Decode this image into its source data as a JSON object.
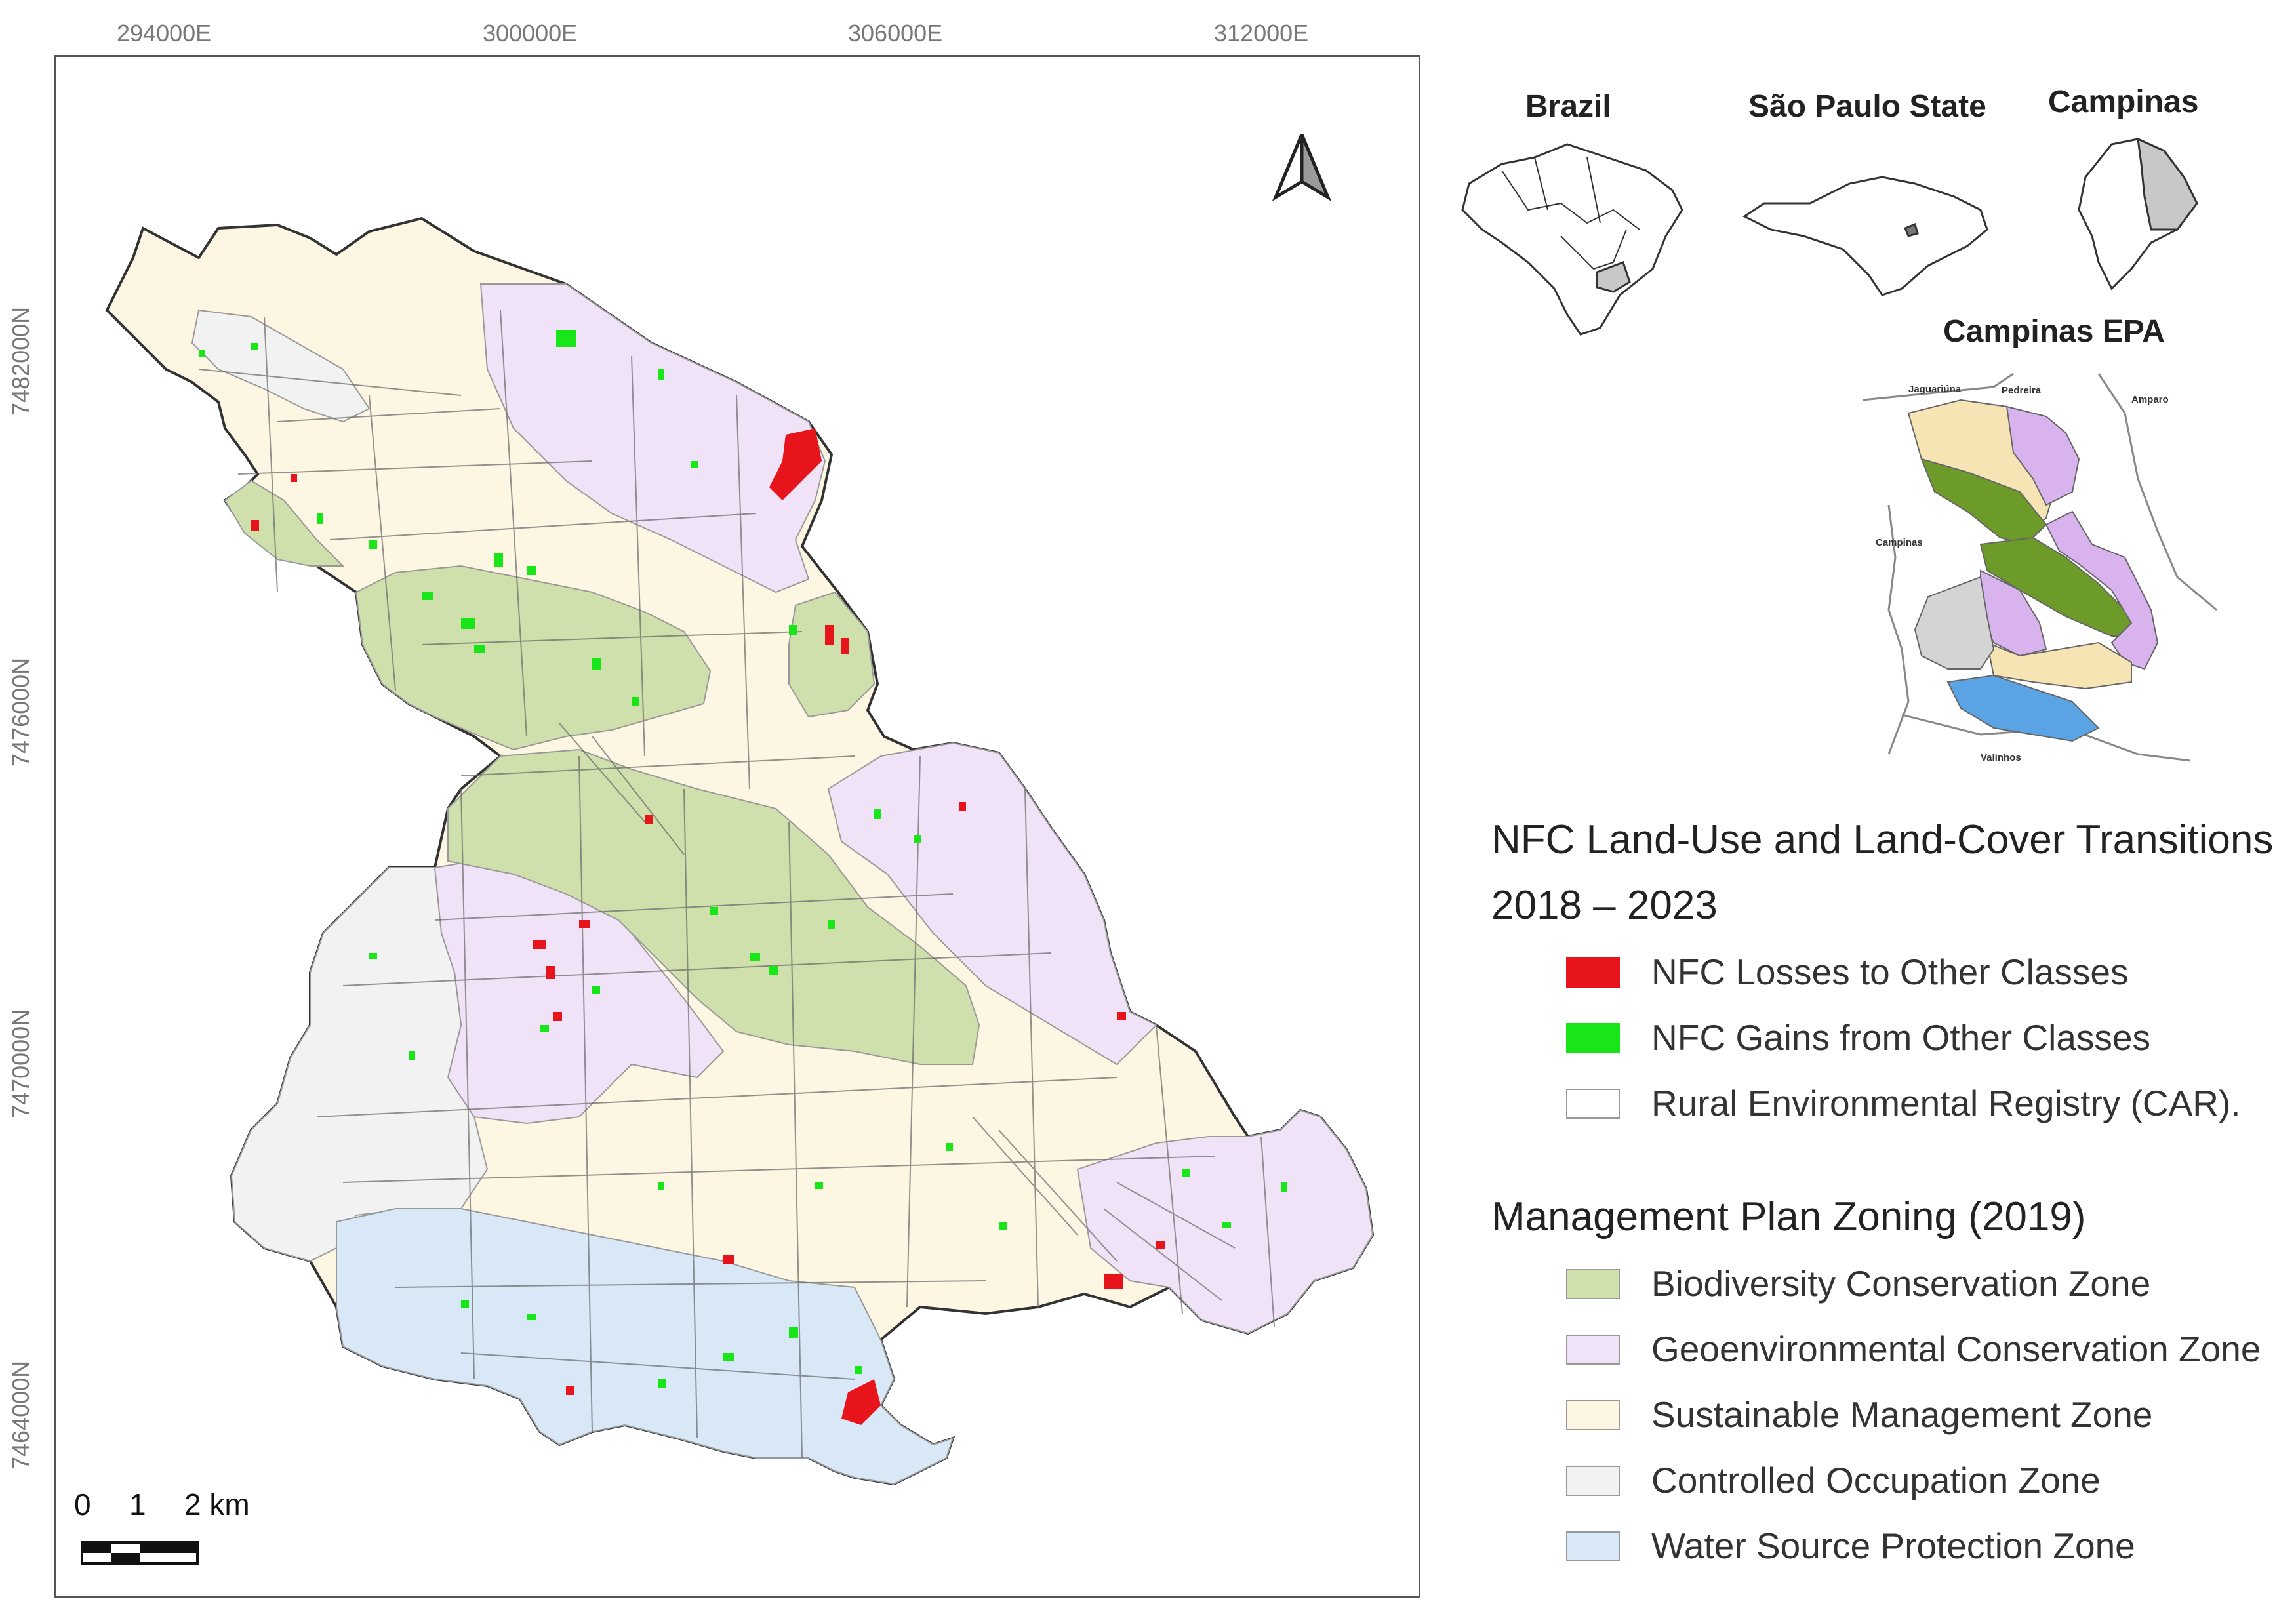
{
  "grid": {
    "eastings": [
      "294000E",
      "300000E",
      "306000E",
      "312000E"
    ],
    "northings": [
      "7482000N",
      "7476000N",
      "7470000N",
      "7464000N"
    ]
  },
  "scalebar": {
    "labels": [
      "0",
      "1",
      "2 km"
    ]
  },
  "insets": {
    "brazil": "Brazil",
    "sao_paulo": "São Paulo State",
    "campinas": "Campinas",
    "epa_title": "Campinas EPA",
    "epa_labels": [
      "Jaguariúna",
      "Pedreira",
      "Amparo",
      "Campinas",
      "Valinhos"
    ]
  },
  "legend": {
    "transitions_title_line1": "NFC Land-Use and Land-Cover Transitions",
    "transitions_title_line2": "2018 – 2023",
    "losses": "NFC Losses to Other Classes",
    "gains": "NFC Gains from Other Classes",
    "car": "Rural Environmental Registry (CAR).",
    "zoning_title": "Management Plan Zoning (2019)",
    "zones": [
      "Biodiversity Conservation Zone",
      "Geoenvironmental Conservation Zone",
      "Sustainable Management Zone",
      "Controlled Occupation Zone",
      "Water Source Protection Zone"
    ]
  },
  "colors": {
    "losses": "#e8141b",
    "gains": "#19e619",
    "car": "#ffffff",
    "biodiversity": "#cfe0ad",
    "geoenvironmental": "#f1e3f7",
    "sustainable": "#fdf6e3",
    "controlled": "#f2f2f2",
    "water": "#d8e8f7",
    "epa_biodiversity": "#6d9b2a",
    "epa_geo": "#d9b3ee",
    "epa_sustainable": "#f7e4b5",
    "epa_controlled": "#d4d4d4",
    "epa_water": "#5aa4e6"
  }
}
